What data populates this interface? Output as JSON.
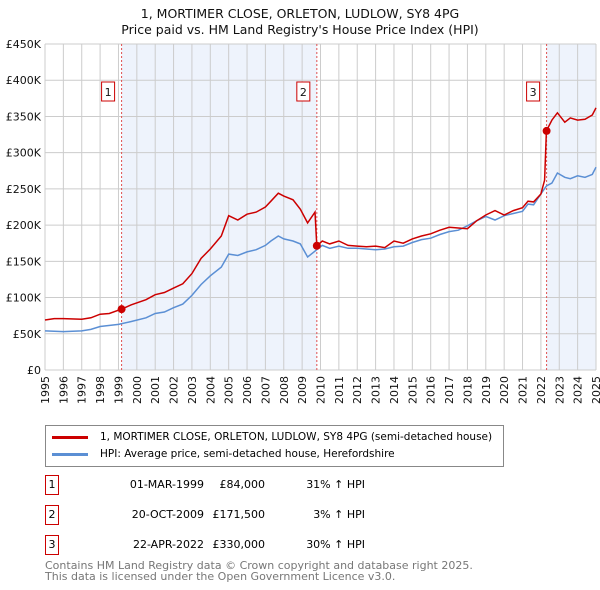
{
  "chart_data": {
    "type": "line",
    "title": "1, MORTIMER CLOSE, ORLETON, LUDLOW, SY8 4PG",
    "subtitle": "Price paid vs. HM Land Registry's House Price Index (HPI)",
    "xlim": [
      1995,
      2025
    ],
    "ylim": [
      0,
      450000
    ],
    "yticks": [
      0,
      50000,
      100000,
      150000,
      200000,
      250000,
      300000,
      350000,
      400000,
      450000
    ],
    "ytick_labels": [
      "£0",
      "£50K",
      "£100K",
      "£150K",
      "£200K",
      "£250K",
      "£300K",
      "£350K",
      "£400K",
      "£450K"
    ],
    "xticks": [
      "1995",
      "1996",
      "1997",
      "1998",
      "1999",
      "2000",
      "2001",
      "2002",
      "2003",
      "2004",
      "2005",
      "2006",
      "2007",
      "2008",
      "2009",
      "2010",
      "2011",
      "2012",
      "2013",
      "2014",
      "2015",
      "2016",
      "2017",
      "2018",
      "2019",
      "2020",
      "2021",
      "2022",
      "2023",
      "2024",
      "2025"
    ],
    "grid": true,
    "series": [
      {
        "name": "1, MORTIMER CLOSE, ORLETON, LUDLOW, SY8 4PG (semi-detached house)",
        "color": "#cc0000",
        "x": [
          1995,
          1995.5,
          1996,
          1997,
          1997.5,
          1998,
          1998.5,
          1999.17,
          1999.7,
          2000.5,
          2001,
          2001.5,
          2002,
          2002.5,
          2003,
          2003.5,
          2004,
          2004.6,
          2005,
          2005.5,
          2006,
          2006.5,
          2007,
          2007.3,
          2007.7,
          2008,
          2008.5,
          2008.9,
          2009.3,
          2009.7,
          2009.8,
          2010.1,
          2010.5,
          2011,
          2011.5,
          2012,
          2012.5,
          2013,
          2013.5,
          2014,
          2014.5,
          2015,
          2015.5,
          2016,
          2016.5,
          2017,
          2017.5,
          2018,
          2018.5,
          2019,
          2019.5,
          2020,
          2020.5,
          2021,
          2021.3,
          2021.6,
          2022.0,
          2022.2,
          2022.3,
          2022.6,
          2022.9,
          2023.3,
          2023.6,
          2024,
          2024.4,
          2024.8,
          2025
        ],
        "y": [
          69000,
          71000,
          71000,
          70000,
          72000,
          77000,
          78000,
          84000,
          90000,
          97000,
          104000,
          107000,
          113000,
          119000,
          133000,
          154000,
          167000,
          185000,
          213000,
          207000,
          215000,
          218000,
          225000,
          233000,
          244000,
          240000,
          235000,
          222000,
          203000,
          218000,
          171500,
          178000,
          174000,
          178000,
          172000,
          171000,
          170000,
          171000,
          169000,
          178000,
          175000,
          181000,
          185000,
          188000,
          193000,
          197000,
          196000,
          195000,
          206000,
          214000,
          220000,
          214000,
          220000,
          224000,
          233000,
          232000,
          243000,
          262000,
          330000,
          345000,
          355000,
          342000,
          348000,
          345000,
          346000,
          352000,
          362000
        ]
      },
      {
        "name": "HPI: Average price, semi-detached house, Herefordshire",
        "color": "#5b8fd4",
        "x": [
          1995,
          1996,
          1997,
          1997.5,
          1998,
          1999,
          1999.7,
          2000.5,
          2001,
          2001.5,
          2002,
          2002.5,
          2003,
          2003.5,
          2004,
          2004.6,
          2005,
          2005.5,
          2006,
          2006.5,
          2007,
          2007.3,
          2007.7,
          2008,
          2008.5,
          2008.9,
          2009.3,
          2009.8,
          2010.1,
          2010.5,
          2011,
          2011.5,
          2012,
          2012.5,
          2013,
          2013.5,
          2014,
          2014.5,
          2015,
          2015.5,
          2016,
          2016.5,
          2017,
          2017.5,
          2018,
          2018.5,
          2019,
          2019.5,
          2020,
          2020.5,
          2021,
          2021.3,
          2021.6,
          2022.0,
          2022.3,
          2022.6,
          2022.9,
          2023.3,
          2023.6,
          2024,
          2024.4,
          2024.8,
          2025
        ],
        "y": [
          54000,
          53000,
          54000,
          56000,
          60000,
          63000,
          67000,
          72000,
          78000,
          80000,
          86000,
          91000,
          103000,
          118000,
          130000,
          142000,
          160000,
          158000,
          163000,
          166000,
          172000,
          178000,
          185000,
          181000,
          178000,
          174000,
          156000,
          166000,
          172000,
          168000,
          171000,
          168000,
          168000,
          167000,
          166000,
          167000,
          170000,
          171000,
          176000,
          180000,
          182000,
          187000,
          191000,
          193000,
          199000,
          206000,
          212000,
          207000,
          213000,
          216000,
          219000,
          229000,
          228000,
          243000,
          254000,
          258000,
          272000,
          266000,
          264000,
          268000,
          266000,
          270000,
          280000
        ]
      }
    ],
    "sales": [
      {
        "label": "1",
        "x": 1999.17,
        "y": 84000,
        "date": "01-MAR-1999",
        "price": "£84,000",
        "hpi": "31% ↑ HPI"
      },
      {
        "label": "2",
        "x": 2009.8,
        "y": 171500,
        "date": "20-OCT-2009",
        "price": "£171,500",
        "hpi": "3% ↑ HPI"
      },
      {
        "label": "3",
        "x": 2022.31,
        "y": 330000,
        "date": "22-APR-2022",
        "price": "£330,000",
        "hpi": "30% ↑ HPI"
      }
    ]
  },
  "footer": [
    "Contains HM Land Registry data © Crown copyright and database right 2025.",
    "This data is licensed under the Open Government Licence v3.0."
  ]
}
